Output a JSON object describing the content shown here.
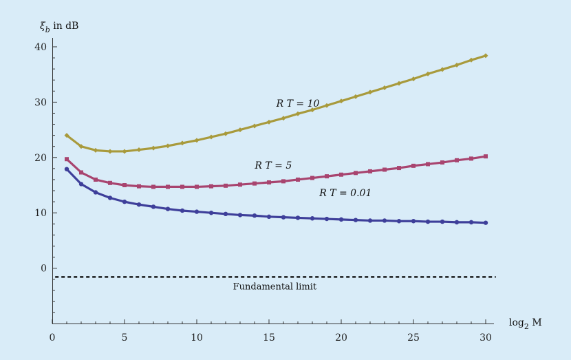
{
  "chart_data": {
    "type": "line",
    "xlabel": "log2 M",
    "xlabel_base": "log",
    "xlabel_sub": "2",
    "xlabel_tail": " M",
    "ylabel": "ξb in dB",
    "ylabel_symbol": "ξ",
    "ylabel_sub": "b",
    "ylabel_tail": " in dB",
    "xlim": [
      0,
      30
    ],
    "ylim": [
      -10,
      40
    ],
    "xticks": [
      0,
      5,
      10,
      15,
      20,
      25,
      30
    ],
    "yticks": [
      0,
      10,
      20,
      30,
      40
    ],
    "x": [
      1,
      2,
      3,
      4,
      5,
      6,
      7,
      8,
      9,
      10,
      11,
      12,
      13,
      14,
      15,
      16,
      17,
      18,
      19,
      20,
      21,
      22,
      23,
      24,
      25,
      26,
      27,
      28,
      29,
      30
    ],
    "series": [
      {
        "name": "R T = 10",
        "color": "#a89a3c",
        "marker": "diamond",
        "values": [
          24.0,
          22.0,
          21.3,
          21.1,
          21.1,
          21.4,
          21.7,
          22.1,
          22.6,
          23.1,
          23.7,
          24.3,
          25.0,
          25.7,
          26.4,
          27.1,
          27.9,
          28.6,
          29.4,
          30.2,
          31.0,
          31.8,
          32.6,
          33.4,
          34.2,
          35.1,
          35.9,
          36.7,
          37.6,
          38.4
        ],
        "label_pos": {
          "x": 17,
          "y": 29.2
        }
      },
      {
        "name": "R T = 5",
        "color": "#a8446f",
        "marker": "square",
        "values": [
          19.7,
          17.3,
          16.0,
          15.4,
          15.0,
          14.8,
          14.7,
          14.7,
          14.7,
          14.7,
          14.8,
          14.9,
          15.1,
          15.3,
          15.5,
          15.7,
          16.0,
          16.3,
          16.6,
          16.9,
          17.2,
          17.5,
          17.8,
          18.1,
          18.5,
          18.8,
          19.1,
          19.5,
          19.8,
          20.2
        ],
        "label_pos": {
          "x": 15.3,
          "y": 18.0
        }
      },
      {
        "name": "R T = 0.01",
        "color": "#3e3f9a",
        "marker": "circle",
        "values": [
          17.9,
          15.2,
          13.7,
          12.7,
          12.0,
          11.5,
          11.1,
          10.7,
          10.4,
          10.2,
          10.0,
          9.8,
          9.6,
          9.5,
          9.3,
          9.2,
          9.1,
          9.0,
          8.9,
          8.8,
          8.7,
          8.6,
          8.6,
          8.5,
          8.5,
          8.4,
          8.4,
          8.3,
          8.3,
          8.2
        ],
        "label_pos": {
          "x": 20.3,
          "y": 13.0
        }
      }
    ],
    "reference_line": {
      "y": -1.59,
      "label": "Fundamental limit",
      "style": "dashed",
      "color": "#000000"
    },
    "grid": false,
    "background": "#d9ecf8"
  }
}
